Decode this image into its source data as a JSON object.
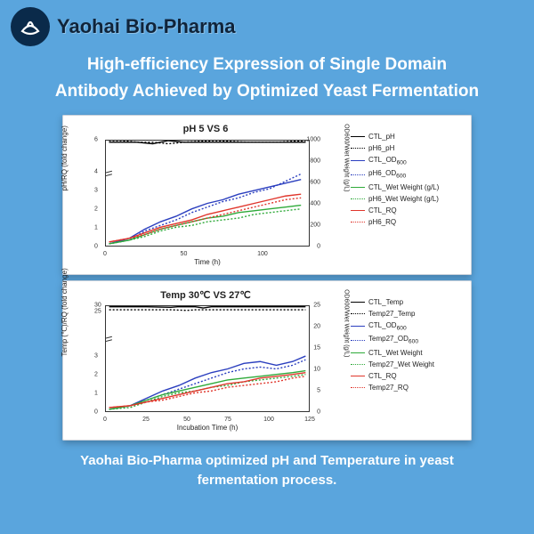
{
  "brand": {
    "company": "Yaohai Bio-Pharma",
    "logo_bg": "#0a2a4a",
    "logo_fg": "#ffffff"
  },
  "headline_line1": "High-efficiency Expression of  Single Domain",
  "headline_line2": "Antibody Achieved by Optimized Yeast Fermentation",
  "bg_color": "#5aa5dd",
  "caption_line1": "Yaohai Bio-Pharma optimized pH and Temperature in yeast",
  "caption_line2": "fermentation process.",
  "chart_top": {
    "title": "pH 5 VS 6",
    "xlabel": "Time (h)",
    "ylabel_left": "pH/RQ (fold change)",
    "ylabel_right": "OD600/Wet Weight (g/L)",
    "xlim": [
      0,
      130
    ],
    "xticks": [
      0,
      50,
      100
    ],
    "yleft_ticks": [
      0,
      1,
      2,
      3,
      4,
      6
    ],
    "yright_ticks": [
      0,
      200,
      400,
      600,
      800,
      1000
    ],
    "series": [
      {
        "name": "CTL_pH",
        "color": "#000000",
        "style": "solid",
        "sub": false,
        "pts": [
          [
            2,
            5.9
          ],
          [
            10,
            5.9
          ],
          [
            20,
            5.9
          ],
          [
            30,
            5.8
          ],
          [
            40,
            6.0
          ],
          [
            50,
            5.9
          ],
          [
            70,
            5.9
          ],
          [
            90,
            5.9
          ],
          [
            110,
            5.9
          ],
          [
            128,
            5.9
          ]
        ]
      },
      {
        "name": "pH6_pH",
        "color": "#000000",
        "style": "dotted",
        "sub": false,
        "pts": [
          [
            2,
            6.0
          ],
          [
            10,
            6.0
          ],
          [
            20,
            5.9
          ],
          [
            30,
            5.9
          ],
          [
            40,
            5.8
          ],
          [
            50,
            5.9
          ],
          [
            70,
            6.0
          ],
          [
            90,
            5.9
          ],
          [
            110,
            5.9
          ],
          [
            128,
            6.0
          ]
        ]
      },
      {
        "name": "CTL_OD600",
        "color": "#2b3fbf",
        "style": "solid",
        "sub": false,
        "pts": [
          [
            2,
            0.1
          ],
          [
            15,
            0.4
          ],
          [
            25,
            0.9
          ],
          [
            35,
            1.3
          ],
          [
            45,
            1.6
          ],
          [
            55,
            2.0
          ],
          [
            65,
            2.3
          ],
          [
            75,
            2.5
          ],
          [
            85,
            2.8
          ],
          [
            95,
            3.0
          ],
          [
            105,
            3.2
          ],
          [
            115,
            3.4
          ],
          [
            125,
            3.6
          ]
        ]
      },
      {
        "name": "pH6_OD600",
        "color": "#2b3fbf",
        "style": "dotted",
        "sub": false,
        "pts": [
          [
            2,
            0.1
          ],
          [
            15,
            0.3
          ],
          [
            25,
            0.8
          ],
          [
            35,
            1.1
          ],
          [
            45,
            1.4
          ],
          [
            55,
            1.8
          ],
          [
            65,
            2.1
          ],
          [
            75,
            2.4
          ],
          [
            85,
            2.6
          ],
          [
            95,
            2.9
          ],
          [
            105,
            3.1
          ],
          [
            115,
            3.5
          ],
          [
            125,
            3.9
          ]
        ]
      },
      {
        "name": "CTL_Wet Weight (g/L)",
        "color": "#2faa3a",
        "style": "solid",
        "sub": false,
        "pts": [
          [
            2,
            0.1
          ],
          [
            15,
            0.3
          ],
          [
            25,
            0.6
          ],
          [
            35,
            0.9
          ],
          [
            45,
            1.1
          ],
          [
            55,
            1.3
          ],
          [
            65,
            1.5
          ],
          [
            75,
            1.6
          ],
          [
            85,
            1.8
          ],
          [
            95,
            1.9
          ],
          [
            105,
            2.0
          ],
          [
            115,
            2.1
          ],
          [
            125,
            2.2
          ]
        ]
      },
      {
        "name": "pH6_Wet Weight (g/L)",
        "color": "#2faa3a",
        "style": "dotted",
        "sub": false,
        "pts": [
          [
            2,
            0.1
          ],
          [
            15,
            0.3
          ],
          [
            25,
            0.5
          ],
          [
            35,
            0.8
          ],
          [
            45,
            1.0
          ],
          [
            55,
            1.1
          ],
          [
            65,
            1.3
          ],
          [
            75,
            1.4
          ],
          [
            85,
            1.5
          ],
          [
            95,
            1.7
          ],
          [
            105,
            1.8
          ],
          [
            115,
            1.9
          ],
          [
            125,
            2.0
          ]
        ]
      },
      {
        "name": "CTL_RQ",
        "color": "#e0362c",
        "style": "solid",
        "sub": false,
        "pts": [
          [
            2,
            0.2
          ],
          [
            15,
            0.4
          ],
          [
            25,
            0.7
          ],
          [
            35,
            1.0
          ],
          [
            45,
            1.2
          ],
          [
            55,
            1.4
          ],
          [
            65,
            1.7
          ],
          [
            75,
            1.9
          ],
          [
            85,
            2.1
          ],
          [
            95,
            2.3
          ],
          [
            105,
            2.5
          ],
          [
            115,
            2.7
          ],
          [
            125,
            2.8
          ]
        ]
      },
      {
        "name": "pH6_RQ",
        "color": "#e0362c",
        "style": "dotted",
        "sub": false,
        "pts": [
          [
            2,
            0.2
          ],
          [
            15,
            0.4
          ],
          [
            25,
            0.6
          ],
          [
            35,
            0.9
          ],
          [
            45,
            1.1
          ],
          [
            55,
            1.3
          ],
          [
            65,
            1.5
          ],
          [
            75,
            1.7
          ],
          [
            85,
            1.9
          ],
          [
            95,
            2.1
          ],
          [
            105,
            2.3
          ],
          [
            115,
            2.5
          ],
          [
            125,
            2.6
          ]
        ]
      }
    ]
  },
  "chart_bottom": {
    "title": "Temp 30℃ VS 27℃",
    "xlabel": "Incubation Time (h)",
    "ylabel_left": "Temp (℃)/RQ (fold change)",
    "ylabel_right": "OD600/Wet Weight (g/L)",
    "xlim": [
      0,
      125
    ],
    "xticks": [
      0,
      25,
      50,
      75,
      100,
      125
    ],
    "yleft_ticks": [
      0,
      1,
      2,
      3,
      25,
      30
    ],
    "yright_ticks": [
      0,
      5,
      10,
      15,
      20,
      25
    ],
    "series": [
      {
        "name": "CTL_Temp",
        "color": "#000000",
        "style": "solid",
        "sub": false,
        "pts": [
          [
            2,
            29.5
          ],
          [
            15,
            29.5
          ],
          [
            25,
            29.5
          ],
          [
            40,
            29.0
          ],
          [
            45,
            29.6
          ],
          [
            55,
            29.5
          ],
          [
            60,
            28.5
          ],
          [
            65,
            29.5
          ],
          [
            80,
            29.5
          ],
          [
            100,
            29.5
          ],
          [
            123,
            29.5
          ]
        ]
      },
      {
        "name": "Temp27_Temp",
        "color": "#000000",
        "style": "dotted",
        "sub": false,
        "pts": [
          [
            2,
            27.0
          ],
          [
            15,
            27.0
          ],
          [
            25,
            27.0
          ],
          [
            40,
            27.0
          ],
          [
            50,
            26.5
          ],
          [
            55,
            27.0
          ],
          [
            70,
            27.0
          ],
          [
            90,
            27.0
          ],
          [
            110,
            27.0
          ],
          [
            123,
            27.0
          ]
        ]
      },
      {
        "name": "CTL_OD600",
        "color": "#2b3fbf",
        "style": "solid",
        "sub": false,
        "pts": [
          [
            2,
            0.1
          ],
          [
            15,
            0.3
          ],
          [
            25,
            0.7
          ],
          [
            35,
            1.1
          ],
          [
            45,
            1.4
          ],
          [
            55,
            1.8
          ],
          [
            65,
            2.1
          ],
          [
            75,
            2.3
          ],
          [
            85,
            2.6
          ],
          [
            95,
            2.7
          ],
          [
            105,
            2.5
          ],
          [
            115,
            2.7
          ],
          [
            123,
            3.0
          ]
        ]
      },
      {
        "name": "Temp27_OD600",
        "color": "#2b3fbf",
        "style": "dotted",
        "sub": false,
        "pts": [
          [
            2,
            0.1
          ],
          [
            15,
            0.3
          ],
          [
            25,
            0.6
          ],
          [
            35,
            0.9
          ],
          [
            45,
            1.2
          ],
          [
            55,
            1.5
          ],
          [
            65,
            1.8
          ],
          [
            75,
            2.1
          ],
          [
            85,
            2.3
          ],
          [
            95,
            2.4
          ],
          [
            105,
            2.3
          ],
          [
            115,
            2.5
          ],
          [
            123,
            2.8
          ]
        ]
      },
      {
        "name": "CTL_Wet Weight",
        "color": "#2faa3a",
        "style": "solid",
        "sub": false,
        "pts": [
          [
            2,
            0.1
          ],
          [
            15,
            0.3
          ],
          [
            25,
            0.6
          ],
          [
            35,
            0.9
          ],
          [
            45,
            1.1
          ],
          [
            55,
            1.3
          ],
          [
            65,
            1.5
          ],
          [
            75,
            1.7
          ],
          [
            85,
            1.8
          ],
          [
            95,
            1.9
          ],
          [
            105,
            2.0
          ],
          [
            115,
            2.1
          ],
          [
            123,
            2.2
          ]
        ]
      },
      {
        "name": "Temp27_Wet Weight",
        "color": "#2faa3a",
        "style": "dotted",
        "sub": false,
        "pts": [
          [
            2,
            0.1
          ],
          [
            15,
            0.2
          ],
          [
            25,
            0.5
          ],
          [
            35,
            0.8
          ],
          [
            45,
            1.0
          ],
          [
            55,
            1.1
          ],
          [
            65,
            1.3
          ],
          [
            75,
            1.4
          ],
          [
            85,
            1.6
          ],
          [
            95,
            1.7
          ],
          [
            105,
            1.8
          ],
          [
            115,
            1.9
          ],
          [
            123,
            2.0
          ]
        ]
      },
      {
        "name": "CTL_RQ",
        "color": "#e0362c",
        "style": "solid",
        "sub": false,
        "pts": [
          [
            2,
            0.2
          ],
          [
            15,
            0.3
          ],
          [
            25,
            0.5
          ],
          [
            35,
            0.7
          ],
          [
            45,
            0.9
          ],
          [
            55,
            1.1
          ],
          [
            65,
            1.3
          ],
          [
            75,
            1.5
          ],
          [
            85,
            1.6
          ],
          [
            95,
            1.8
          ],
          [
            105,
            1.9
          ],
          [
            115,
            2.0
          ],
          [
            123,
            2.1
          ]
        ]
      },
      {
        "name": "Temp27_RQ",
        "color": "#e0362c",
        "style": "dotted",
        "sub": false,
        "pts": [
          [
            2,
            0.2
          ],
          [
            15,
            0.3
          ],
          [
            25,
            0.5
          ],
          [
            35,
            0.6
          ],
          [
            45,
            0.8
          ],
          [
            55,
            1.0
          ],
          [
            65,
            1.1
          ],
          [
            75,
            1.3
          ],
          [
            85,
            1.4
          ],
          [
            95,
            1.5
          ],
          [
            105,
            1.6
          ],
          [
            115,
            1.8
          ],
          [
            123,
            1.9
          ]
        ]
      }
    ]
  }
}
